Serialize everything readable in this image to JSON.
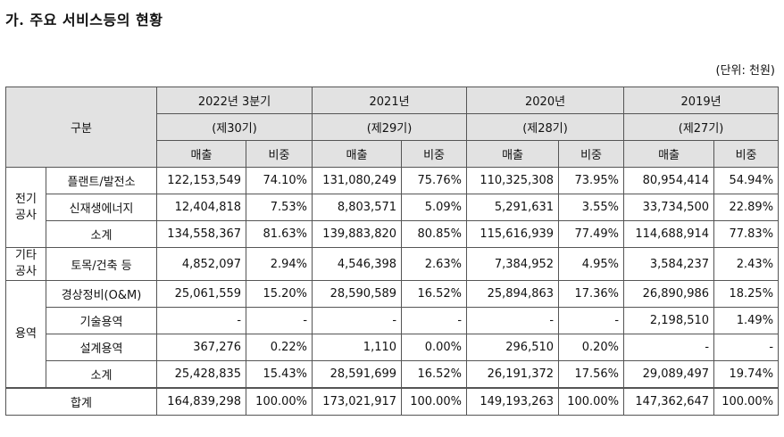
{
  "title": "가. 주요 서비스등의 현황",
  "unit": "(단위: 천원)",
  "header": {
    "category": "구분",
    "periods": [
      {
        "year": "2022년 3분기",
        "term": "(제30기)"
      },
      {
        "year": "2021년",
        "term": "(제29기)"
      },
      {
        "year": "2020년",
        "term": "(제28기)"
      },
      {
        "year": "2019년",
        "term": "(제27기)"
      }
    ],
    "sales": "매출",
    "ratio": "비중"
  },
  "groups": {
    "electric": "전기\n공사",
    "etc": "기타\n공사",
    "service": "용역"
  },
  "rows": [
    {
      "label": "플랜트/발전소",
      "values": [
        "122,153,549",
        "74.10%",
        "131,080,249",
        "75.76%",
        "110,325,308",
        "73.95%",
        "80,954,414",
        "54.94%"
      ]
    },
    {
      "label": "신재생에너지",
      "values": [
        "12,404,818",
        "7.53%",
        "8,803,571",
        "5.09%",
        "5,291,631",
        "3.55%",
        "33,734,500",
        "22.89%"
      ]
    },
    {
      "label": "소계",
      "values": [
        "134,558,367",
        "81.63%",
        "139,883,820",
        "80.85%",
        "115,616,939",
        "77.49%",
        "114,688,914",
        "77.83%"
      ]
    },
    {
      "label": "토목/건축 등",
      "values": [
        "4,852,097",
        "2.94%",
        "4,546,398",
        "2.63%",
        "7,384,952",
        "4.95%",
        "3,584,237",
        "2.43%"
      ]
    },
    {
      "label": "경상정비(O&M)",
      "values": [
        "25,061,559",
        "15.20%",
        "28,590,589",
        "16.52%",
        "25,894,863",
        "17.36%",
        "26,890,986",
        "18.25%"
      ]
    },
    {
      "label": "기술용역",
      "values": [
        "-",
        "-",
        "-",
        "-",
        "-",
        "-",
        "2,198,510",
        "1.49%"
      ]
    },
    {
      "label": "설계용역",
      "values": [
        "367,276",
        "0.22%",
        "1,110",
        "0.00%",
        "296,510",
        "0.20%",
        "-",
        "-"
      ]
    },
    {
      "label": "소계",
      "values": [
        "25,428,835",
        "15.43%",
        "28,591,699",
        "16.52%",
        "26,191,372",
        "17.56%",
        "29,089,497",
        "19.74%"
      ]
    }
  ],
  "total": {
    "label": "합계",
    "values": [
      "164,839,298",
      "100.00%",
      "173,021,917",
      "100.00%",
      "149,193,263",
      "100.00%",
      "147,362,647",
      "100.00%"
    ]
  }
}
